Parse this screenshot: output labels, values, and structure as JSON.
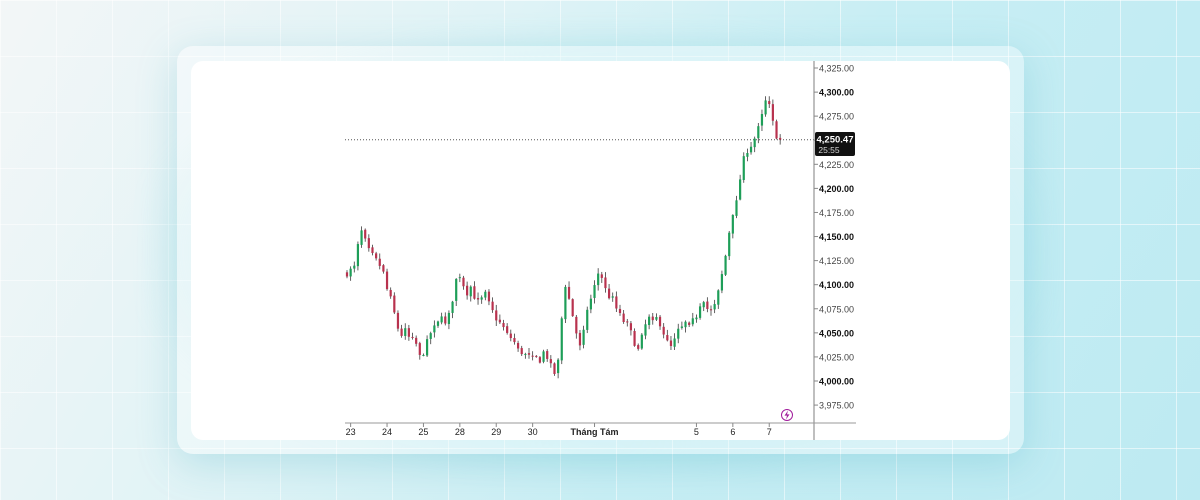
{
  "colors": {
    "up": "#1e9e58",
    "down": "#b8324e",
    "wick": "#3a3a3a",
    "axis": "#7f7f7f",
    "price_tag_bg": "#111111",
    "price_tag_fg": "#ffffff",
    "event_icon": "#a11d9c"
  },
  "icons": {
    "event": "lightning-icon"
  },
  "chart_data": {
    "type": "candlestick",
    "y_axis": {
      "min": 3965,
      "max": 4330,
      "ticks": [
        3975,
        4000,
        4025,
        4050,
        4075,
        4100,
        4125,
        4150,
        4175,
        4200,
        4225,
        4250,
        4275,
        4300,
        4325
      ],
      "tick_labels": [
        "3,975.00",
        "4,000.00",
        "4,025.00",
        "4,050.00",
        "4,075.00",
        "4,100.00",
        "4,125.00",
        "4,150.00",
        "4,175.00",
        "4,200.00",
        "4,225.00",
        "4,250.00",
        "4,275.00",
        "4,300.00",
        "4,325.00"
      ],
      "bold_ticks": [
        4000,
        4050,
        4100,
        4150,
        4200,
        4300
      ]
    },
    "x_axis": {
      "labels": [
        "23",
        "24",
        "25",
        "28",
        "29",
        "30",
        "Tháng Tám",
        "5",
        "6",
        "7"
      ],
      "label_index": [
        1,
        11,
        21,
        31,
        41,
        51,
        68,
        96,
        106,
        116
      ],
      "bold_labels": [
        "Tháng Tám"
      ]
    },
    "current_price": {
      "label": "4,250.47",
      "value": 4250.47,
      "countdown": "25:55"
    },
    "close_path": [
      [
        0,
        4112
      ],
      [
        2,
        4115
      ],
      [
        4,
        4118
      ],
      [
        6,
        4140
      ],
      [
        8,
        4155
      ],
      [
        10,
        4145
      ],
      [
        12,
        4135
      ],
      [
        14,
        4130
      ],
      [
        16,
        4125
      ],
      [
        18,
        4120
      ],
      [
        20,
        4112
      ],
      [
        22,
        4095
      ],
      [
        24,
        4085
      ],
      [
        26,
        4070
      ],
      [
        28,
        4055
      ],
      [
        30,
        4048
      ],
      [
        32,
        4052
      ],
      [
        34,
        4045
      ],
      [
        36,
        4042
      ],
      [
        38,
        4038
      ],
      [
        40,
        4025
      ],
      [
        42,
        4030
      ],
      [
        44,
        4040
      ],
      [
        46,
        4050
      ],
      [
        48,
        4055
      ],
      [
        50,
        4060
      ],
      [
        52,
        4070
      ],
      [
        54,
        4058
      ],
      [
        56,
        4068
      ],
      [
        58,
        4085
      ],
      [
        60,
        4105
      ],
      [
        62,
        4110
      ],
      [
        64,
        4100
      ],
      [
        66,
        4092
      ],
      [
        68,
        4098
      ],
      [
        70,
        4088
      ],
      [
        72,
        4082
      ],
      [
        74,
        4085
      ],
      [
        76,
        4090
      ],
      [
        78,
        4080
      ],
      [
        80,
        4072
      ],
      [
        82,
        4065
      ],
      [
        84,
        4060
      ],
      [
        86,
        4055
      ],
      [
        88,
        4048
      ],
      [
        90,
        4045
      ],
      [
        92,
        4040
      ],
      [
        94,
        4032
      ],
      [
        96,
        4030
      ],
      [
        98,
        4027
      ],
      [
        100,
        4025
      ],
      [
        102,
        4022
      ],
      [
        104,
        4024
      ],
      [
        106,
        4022
      ],
      [
        108,
        4030
      ],
      [
        110,
        4025
      ],
      [
        112,
        4015
      ],
      [
        114,
        4008
      ],
      [
        116,
        4020
      ],
      [
        118,
        4065
      ],
      [
        120,
        4100
      ],
      [
        122,
        4085
      ],
      [
        124,
        4068
      ],
      [
        126,
        4050
      ],
      [
        128,
        4035
      ],
      [
        130,
        4050
      ],
      [
        132,
        4075
      ],
      [
        134,
        4085
      ],
      [
        136,
        4098
      ],
      [
        138,
        4112
      ],
      [
        140,
        4108
      ],
      [
        142,
        4095
      ],
      [
        144,
        4088
      ],
      [
        146,
        4085
      ],
      [
        148,
        4075
      ],
      [
        150,
        4068
      ],
      [
        152,
        4062
      ],
      [
        154,
        4058
      ],
      [
        156,
        4050
      ],
      [
        158,
        4040
      ],
      [
        160,
        4032
      ],
      [
        162,
        4045
      ],
      [
        164,
        4058
      ],
      [
        166,
        4065
      ],
      [
        168,
        4060
      ],
      [
        170,
        4065
      ],
      [
        172,
        4060
      ],
      [
        174,
        4050
      ],
      [
        176,
        4040
      ],
      [
        178,
        4035
      ],
      [
        180,
        4042
      ],
      [
        182,
        4052
      ],
      [
        184,
        4055
      ],
      [
        186,
        4060
      ],
      [
        188,
        4055
      ],
      [
        190,
        4062
      ],
      [
        192,
        4068
      ],
      [
        194,
        4080
      ],
      [
        196,
        4085
      ],
      [
        198,
        4075
      ],
      [
        200,
        4072
      ],
      [
        202,
        4078
      ],
      [
        204,
        4092
      ],
      [
        206,
        4110
      ],
      [
        208,
        4130
      ],
      [
        210,
        4155
      ],
      [
        212,
        4175
      ],
      [
        214,
        4185
      ],
      [
        216,
        4210
      ],
      [
        218,
        4230
      ],
      [
        220,
        4240
      ],
      [
        222,
        4245
      ],
      [
        224,
        4252
      ],
      [
        226,
        4262
      ],
      [
        228,
        4275
      ],
      [
        230,
        4290
      ],
      [
        232,
        4285
      ],
      [
        234,
        4268
      ],
      [
        236,
        4255
      ],
      [
        238,
        4250
      ]
    ]
  }
}
